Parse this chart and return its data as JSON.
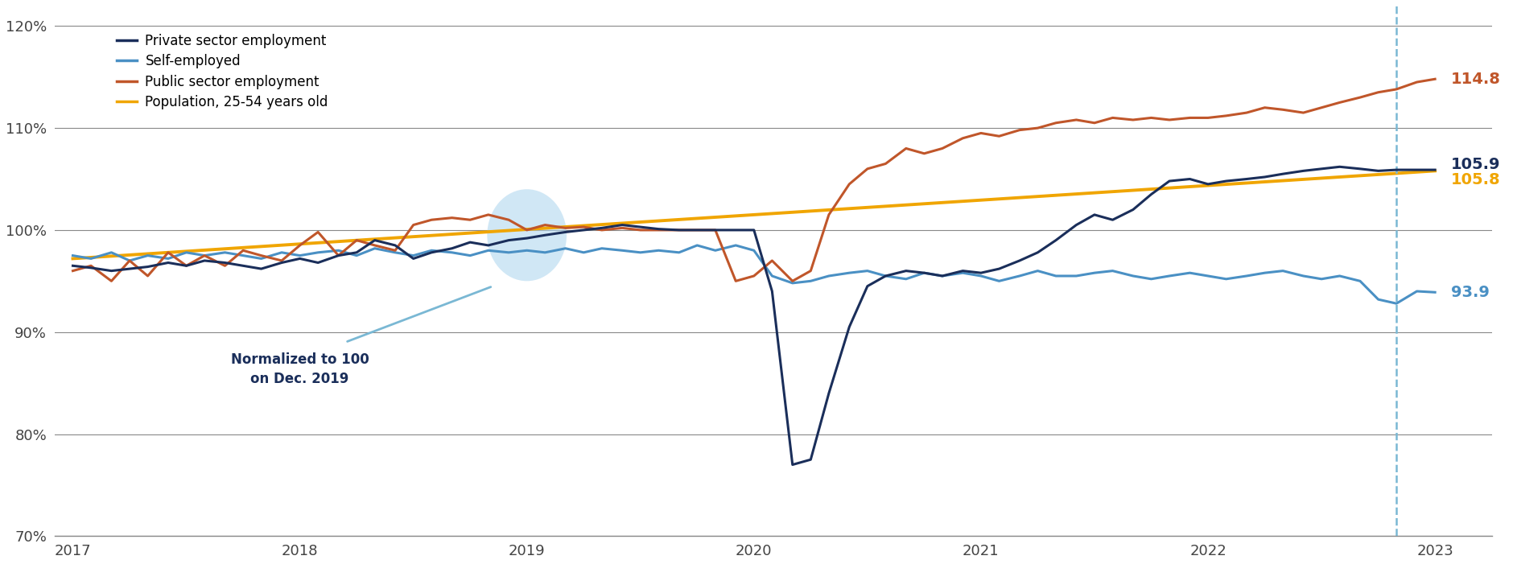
{
  "legend_entries": [
    "Private sector employment",
    "Self-employed",
    "Public sector employment",
    "Population, 25-54 years old"
  ],
  "legend_colors": [
    "#1a2e5a",
    "#4a90c4",
    "#c0562a",
    "#f0a500"
  ],
  "line_colors": {
    "private": "#1a2e5a",
    "self": "#4a90c4",
    "public": "#c0562a",
    "population": "#f0a500"
  },
  "end_labels": {
    "public": "114.8",
    "private": "105.9",
    "population": "105.8",
    "self": "93.9"
  },
  "end_label_colors": {
    "public": "#c0562a",
    "private": "#1a2e5a",
    "population": "#f0a500",
    "self": "#4a90c4"
  },
  "annotation_text": "Normalized to 100\non Dec. 2019",
  "vline_x": 2022.83,
  "vline_color": "#7ab8d4",
  "ylim": [
    70,
    122
  ],
  "yticks": [
    70,
    80,
    90,
    100,
    110,
    120
  ],
  "xlim": [
    2016.92,
    2023.25
  ],
  "xticks": [
    2017,
    2018,
    2019,
    2020,
    2021,
    2022,
    2023
  ],
  "background_color": "#ffffff",
  "grid_color": "#888888",
  "private_data": {
    "x": [
      2017.0,
      2017.08,
      2017.17,
      2017.25,
      2017.33,
      2017.42,
      2017.5,
      2017.58,
      2017.67,
      2017.75,
      2017.83,
      2017.92,
      2018.0,
      2018.08,
      2018.17,
      2018.25,
      2018.33,
      2018.42,
      2018.5,
      2018.58,
      2018.67,
      2018.75,
      2018.83,
      2018.92,
      2019.0,
      2019.08,
      2019.17,
      2019.25,
      2019.33,
      2019.42,
      2019.5,
      2019.58,
      2019.67,
      2019.75,
      2019.83,
      2019.92,
      2020.0,
      2020.08,
      2020.17,
      2020.25,
      2020.33,
      2020.42,
      2020.5,
      2020.58,
      2020.67,
      2020.75,
      2020.83,
      2020.92,
      2021.0,
      2021.08,
      2021.17,
      2021.25,
      2021.33,
      2021.42,
      2021.5,
      2021.58,
      2021.67,
      2021.75,
      2021.83,
      2021.92,
      2022.0,
      2022.08,
      2022.17,
      2022.25,
      2022.33,
      2022.42,
      2022.5,
      2022.58,
      2022.67,
      2022.75,
      2022.83,
      2022.92,
      2023.0
    ],
    "y": [
      96.5,
      96.3,
      96.0,
      96.2,
      96.4,
      96.8,
      96.5,
      97.0,
      96.8,
      96.5,
      96.2,
      96.8,
      97.2,
      96.8,
      97.5,
      97.8,
      99.0,
      98.5,
      97.2,
      97.8,
      98.2,
      98.8,
      98.5,
      99.0,
      99.2,
      99.5,
      99.8,
      100.0,
      100.2,
      100.5,
      100.3,
      100.1,
      100.0,
      100.0,
      100.0,
      100.0,
      100.0,
      94.0,
      77.0,
      77.5,
      84.0,
      90.5,
      94.5,
      95.5,
      96.0,
      95.8,
      95.5,
      96.0,
      95.8,
      96.2,
      97.0,
      97.8,
      99.0,
      100.5,
      101.5,
      101.0,
      102.0,
      103.5,
      104.8,
      105.0,
      104.5,
      104.8,
      105.0,
      105.2,
      105.5,
      105.8,
      106.0,
      106.2,
      106.0,
      105.8,
      105.9,
      105.9,
      105.9
    ]
  },
  "self_data": {
    "x": [
      2017.0,
      2017.08,
      2017.17,
      2017.25,
      2017.33,
      2017.42,
      2017.5,
      2017.58,
      2017.67,
      2017.75,
      2017.83,
      2017.92,
      2018.0,
      2018.08,
      2018.17,
      2018.25,
      2018.33,
      2018.42,
      2018.5,
      2018.58,
      2018.67,
      2018.75,
      2018.83,
      2018.92,
      2019.0,
      2019.08,
      2019.17,
      2019.25,
      2019.33,
      2019.42,
      2019.5,
      2019.58,
      2019.67,
      2019.75,
      2019.83,
      2019.92,
      2020.0,
      2020.08,
      2020.17,
      2020.25,
      2020.33,
      2020.42,
      2020.5,
      2020.58,
      2020.67,
      2020.75,
      2020.83,
      2020.92,
      2021.0,
      2021.08,
      2021.17,
      2021.25,
      2021.33,
      2021.42,
      2021.5,
      2021.58,
      2021.67,
      2021.75,
      2021.83,
      2021.92,
      2022.0,
      2022.08,
      2022.17,
      2022.25,
      2022.33,
      2022.42,
      2022.5,
      2022.58,
      2022.67,
      2022.75,
      2022.83,
      2022.92,
      2023.0
    ],
    "y": [
      97.5,
      97.2,
      97.8,
      97.0,
      97.5,
      97.2,
      97.8,
      97.5,
      97.8,
      97.5,
      97.2,
      97.8,
      97.5,
      97.8,
      98.0,
      97.5,
      98.2,
      97.8,
      97.5,
      98.0,
      97.8,
      97.5,
      98.0,
      97.8,
      98.0,
      97.8,
      98.2,
      97.8,
      98.2,
      98.0,
      97.8,
      98.0,
      97.8,
      98.5,
      98.0,
      98.5,
      98.0,
      95.5,
      94.8,
      95.0,
      95.5,
      95.8,
      96.0,
      95.5,
      95.2,
      95.8,
      95.5,
      95.8,
      95.5,
      95.0,
      95.5,
      96.0,
      95.5,
      95.5,
      95.8,
      96.0,
      95.5,
      95.2,
      95.5,
      95.8,
      95.5,
      95.2,
      95.5,
      95.8,
      96.0,
      95.5,
      95.2,
      95.5,
      95.0,
      93.2,
      92.8,
      94.0,
      93.9
    ]
  },
  "public_data": {
    "x": [
      2017.0,
      2017.08,
      2017.17,
      2017.25,
      2017.33,
      2017.42,
      2017.5,
      2017.58,
      2017.67,
      2017.75,
      2017.83,
      2017.92,
      2018.0,
      2018.08,
      2018.17,
      2018.25,
      2018.33,
      2018.42,
      2018.5,
      2018.58,
      2018.67,
      2018.75,
      2018.83,
      2018.92,
      2019.0,
      2019.08,
      2019.17,
      2019.25,
      2019.33,
      2019.42,
      2019.5,
      2019.58,
      2019.67,
      2019.75,
      2019.83,
      2019.92,
      2020.0,
      2020.08,
      2020.17,
      2020.25,
      2020.33,
      2020.42,
      2020.5,
      2020.58,
      2020.67,
      2020.75,
      2020.83,
      2020.92,
      2021.0,
      2021.08,
      2021.17,
      2021.25,
      2021.33,
      2021.42,
      2021.5,
      2021.58,
      2021.67,
      2021.75,
      2021.83,
      2021.92,
      2022.0,
      2022.08,
      2022.17,
      2022.25,
      2022.33,
      2022.42,
      2022.5,
      2022.58,
      2022.67,
      2022.75,
      2022.83,
      2022.92,
      2023.0
    ],
    "y": [
      96.0,
      96.5,
      95.0,
      97.0,
      95.5,
      97.8,
      96.5,
      97.5,
      96.5,
      98.0,
      97.5,
      97.0,
      98.5,
      99.8,
      97.5,
      99.0,
      98.5,
      98.0,
      100.5,
      101.0,
      101.2,
      101.0,
      101.5,
      101.0,
      100.0,
      100.5,
      100.2,
      100.3,
      100.0,
      100.2,
      100.0,
      100.0,
      100.0,
      100.0,
      100.0,
      95.0,
      95.5,
      97.0,
      95.0,
      96.0,
      101.5,
      104.5,
      106.0,
      106.5,
      108.0,
      107.5,
      108.0,
      109.0,
      109.5,
      109.2,
      109.8,
      110.0,
      110.5,
      110.8,
      110.5,
      111.0,
      110.8,
      111.0,
      110.8,
      111.0,
      111.0,
      111.2,
      111.5,
      112.0,
      111.8,
      111.5,
      112.0,
      112.5,
      113.0,
      113.5,
      113.8,
      114.5,
      114.8
    ]
  },
  "population_data": {
    "x": [
      2017.0,
      2023.0
    ],
    "y": [
      97.2,
      105.8
    ]
  }
}
